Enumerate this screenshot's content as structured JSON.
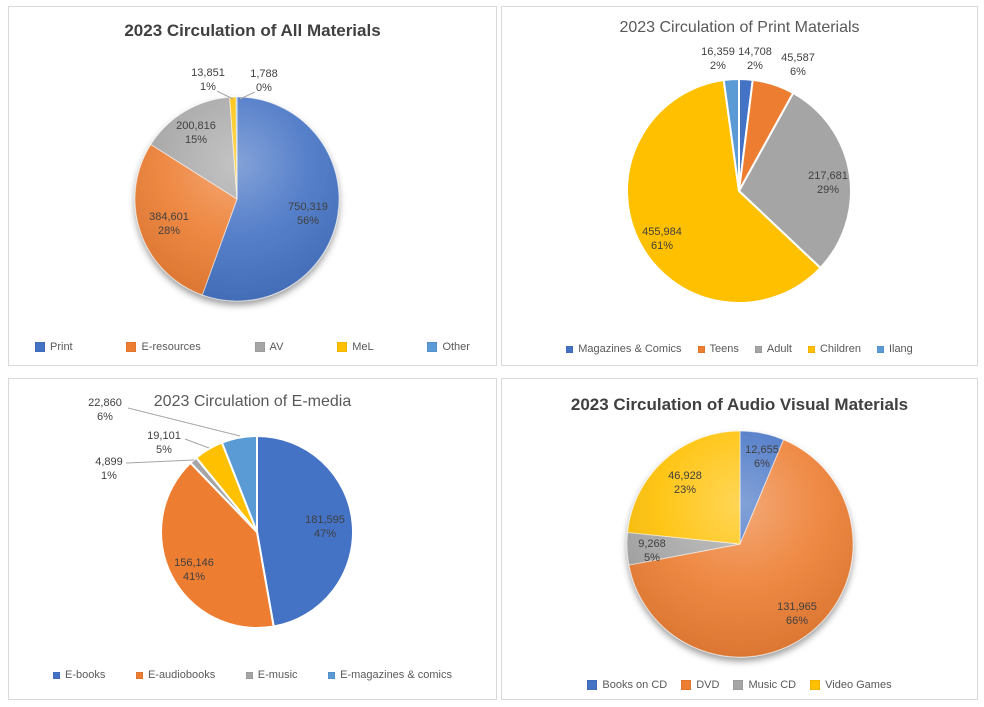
{
  "colors": {
    "blue": "#4472C4",
    "orange": "#ED7D31",
    "gray": "#A5A5A5",
    "yellow": "#FFC000",
    "light_blue": "#5B9BD5",
    "label_text": "#404040",
    "title_regular": "#595959",
    "title_bold": "#404040",
    "leader_line": "#A6A6A6",
    "panel_border": "#D9D9D9"
  },
  "chart_data": [
    {
      "type": "pie",
      "title": "2023 Circulation of All Materials",
      "legend_position": "bottom",
      "slices": [
        {
          "label": "Print",
          "value": 750319,
          "display": "750,319",
          "pct": "56%",
          "color": "#4472C4"
        },
        {
          "label": "E-resources",
          "value": 384601,
          "display": "384,601",
          "pct": "28%",
          "color": "#ED7D31"
        },
        {
          "label": "AV",
          "value": 200816,
          "display": "200,816",
          "pct": "15%",
          "color": "#A5A5A5"
        },
        {
          "label": "MeL",
          "value": 13851,
          "display": "13,851",
          "pct": "1%",
          "color": "#FFC000"
        },
        {
          "label": "Other",
          "value": 1788,
          "display": "1,788",
          "pct": "0%",
          "color": "#5B9BD5"
        }
      ],
      "legend": [
        {
          "label": "Print",
          "color": "#4472C4"
        },
        {
          "label": "E-resources",
          "color": "#ED7D31"
        },
        {
          "label": "AV",
          "color": "#A5A5A5"
        },
        {
          "label": "MeL",
          "color": "#FFC000"
        },
        {
          "label": "Other",
          "color": "#5B9BD5"
        }
      ]
    },
    {
      "type": "pie",
      "title": "2023 Circulation of Print Materials",
      "legend_position": "bottom",
      "slices": [
        {
          "label": "Magazines & Comics",
          "value": 14708,
          "display": "14,708",
          "pct": "2%",
          "color": "#4472C4"
        },
        {
          "label": "Teens",
          "value": 45587,
          "display": "45,587",
          "pct": "6%",
          "color": "#ED7D31"
        },
        {
          "label": "Adult",
          "value": 217681,
          "display": "217,681",
          "pct": "29%",
          "color": "#A5A5A5"
        },
        {
          "label": "Children",
          "value": 455984,
          "display": "455,984",
          "pct": "61%",
          "color": "#FFC000"
        },
        {
          "label": "Ilang",
          "value": 16359,
          "display": "16,359",
          "pct": "2%",
          "color": "#5B9BD5"
        }
      ],
      "legend": [
        {
          "label": "Magazines & Comics",
          "color": "#4472C4"
        },
        {
          "label": "Teens",
          "color": "#ED7D31"
        },
        {
          "label": "Adult",
          "color": "#A5A5A5"
        },
        {
          "label": "Children",
          "color": "#FFC000"
        },
        {
          "label": "Ilang",
          "color": "#5B9BD5"
        }
      ]
    },
    {
      "type": "pie",
      "title": "2023 Circulation of E-media",
      "legend_position": "bottom",
      "slices": [
        {
          "label": "E-books",
          "value": 181595,
          "display": "181,595",
          "pct": "47%",
          "color": "#4472C4"
        },
        {
          "label": "E-audiobooks",
          "value": 156146,
          "display": "156,146",
          "pct": "41%",
          "color": "#ED7D31"
        },
        {
          "label": "E-music",
          "value": 4899,
          "display": "4,899",
          "pct": "1%",
          "color": "#A5A5A5"
        },
        {
          "label": "",
          "value": 19101,
          "display": "19,101",
          "pct": "5%",
          "color": "#FFC000"
        },
        {
          "label": "E-magazines & comics",
          "value": 22860,
          "display": "22,860",
          "pct": "6%",
          "color": "#5B9BD5"
        }
      ],
      "legend": [
        {
          "label": "E-books",
          "color": "#4472C4"
        },
        {
          "label": "E-audiobooks",
          "color": "#ED7D31"
        },
        {
          "label": "E-music",
          "color": "#A5A5A5"
        },
        {
          "label": "E-magazines & comics",
          "color": "#5B9BD5"
        }
      ]
    },
    {
      "type": "pie",
      "title": "2023 Circulation of Audio Visual Materials",
      "legend_position": "bottom",
      "slices": [
        {
          "label": "Books on CD",
          "value": 12655,
          "display": "12,655",
          "pct": "6%",
          "color": "#4472C4"
        },
        {
          "label": "DVD",
          "value": 131965,
          "display": "131,965",
          "pct": "66%",
          "color": "#ED7D31"
        },
        {
          "label": "Music CD",
          "value": 9268,
          "display": "9,268",
          "pct": "5%",
          "color": "#A5A5A5"
        },
        {
          "label": "Video Games",
          "value": 46928,
          "display": "46,928",
          "pct": "23%",
          "color": "#FFC000"
        }
      ],
      "legend": [
        {
          "label": "Books on CD",
          "color": "#4472C4"
        },
        {
          "label": "DVD",
          "color": "#ED7D31"
        },
        {
          "label": "Music CD",
          "color": "#A5A5A5"
        },
        {
          "label": "Video Games",
          "color": "#FFC000"
        }
      ]
    }
  ]
}
